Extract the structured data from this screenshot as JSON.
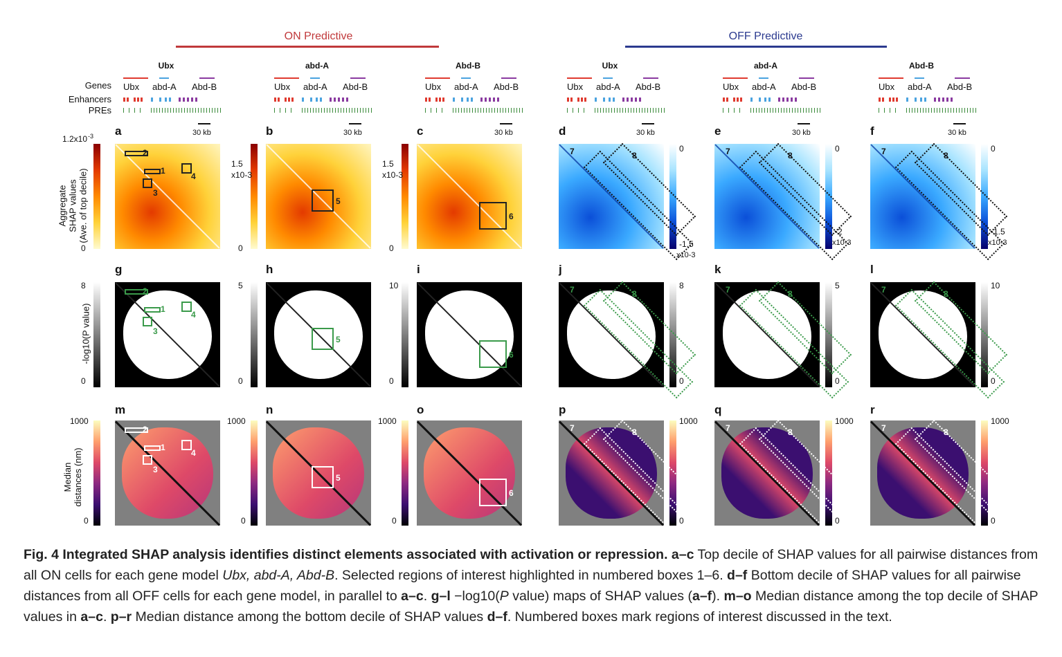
{
  "groups": [
    {
      "title": "ON Predictive",
      "color": "#c0393b"
    },
    {
      "title": "OFF Predictive",
      "color": "#2b3a8f"
    }
  ],
  "columns": [
    {
      "gene": "Ubx",
      "panel_top": "a",
      "panel_mid": "g",
      "panel_bot": "m",
      "type": "on",
      "shap_max": "1.2x10",
      "shap_exp": "-3",
      "shap_min": "0",
      "p_max": "8",
      "p_min": "0",
      "dist_max": "1000",
      "dist_min": "0"
    },
    {
      "gene": "abd-A",
      "panel_top": "b",
      "panel_mid": "h",
      "panel_bot": "n",
      "type": "on",
      "shap_max": "1.5",
      "shap_exp": "x10-3",
      "shap_min": "0",
      "p_max": "5",
      "p_min": "0",
      "dist_max": "1000",
      "dist_min": "0"
    },
    {
      "gene": "Abd-B",
      "panel_top": "c",
      "panel_mid": "i",
      "panel_bot": "o",
      "type": "on",
      "shap_max": "1.5",
      "shap_exp": "x10-3",
      "shap_min": "0",
      "p_max": "10",
      "p_min": "0",
      "dist_max": "1000",
      "dist_min": "0"
    },
    {
      "gene": "Ubx",
      "panel_top": "d",
      "panel_mid": "j",
      "panel_bot": "p",
      "type": "off",
      "shap_max": "0",
      "shap_min": "-1.5",
      "shap_exp": "x10-3",
      "p_max": "8",
      "p_min": "0",
      "dist_max": "1000",
      "dist_min": "0"
    },
    {
      "gene": "abd-A",
      "panel_top": "e",
      "panel_mid": "k",
      "panel_bot": "q",
      "type": "off",
      "shap_max": "0",
      "shap_min": "-2",
      "shap_exp": "x10-3",
      "p_max": "5",
      "p_min": "0",
      "dist_max": "1000",
      "dist_min": "0"
    },
    {
      "gene": "Abd-B",
      "panel_top": "f",
      "panel_mid": "l",
      "panel_bot": "r",
      "type": "off",
      "shap_max": "0",
      "shap_min": "-1.5",
      "shap_exp": "x10-3",
      "p_max": "10",
      "p_min": "0",
      "dist_max": "1000",
      "dist_min": "0"
    }
  ],
  "tracks": {
    "genes": "Genes",
    "enhancers": "Enhancers",
    "pres": "PREs"
  },
  "gene_names": [
    "Ubx",
    "abd-A",
    "Abd-B"
  ],
  "scale": "30 kb",
  "y_labels": {
    "top": [
      "Aggregate",
      "SHAP values",
      "(Ave. of top decile)"
    ],
    "mid": "-log10(P value)",
    "bot": [
      "Median",
      "distances (nm)"
    ]
  },
  "roi_numbers": [
    "1",
    "2",
    "3",
    "4",
    "5",
    "6",
    "7",
    "8"
  ],
  "caption": {
    "title": "Fig. 4 Integrated SHAP analysis identifies distinct elements associated with activation or repression.",
    "part1_bold": "a–c",
    "part1": " Top decile of SHAP values for all pairwise distances from all ON cells for each gene model ",
    "part1_italic": "Ubx, abd-A, Abd-B",
    "part1b": ". Selected regions of interest highlighted in numbered boxes 1–6. ",
    "part2_bold": "d–f",
    "part2": " Bottom decile of SHAP values for all pairwise distances from all OFF cells for each gene model, in parallel to ",
    "part2_ref": "a–c",
    "part2b": ". ",
    "part3_bold": "g–l",
    "part3": " −log10(",
    "part3_italic": "P",
    "part3b": " value) maps of SHAP values (",
    "part3_ref": "a–f",
    "part3c": "). ",
    "part4_bold": "m–o",
    "part4": " Median distance among the top decile of SHAP values in ",
    "part4_ref": "a–c",
    "part4b": ". ",
    "part5_bold": "p–r",
    "part5": " Median distance among the bottom decile of SHAP values ",
    "part5_ref": "d–f",
    "part5b": ". Numbered boxes mark regions of interest discussed in the text."
  },
  "colors": {
    "on_gradient": [
      "#fffbd0",
      "#ffd23a",
      "#ff8a00",
      "#e33a00",
      "#8a0000"
    ],
    "off_gradient": [
      "#ffffff",
      "#a8e4ff",
      "#3aa9ff",
      "#0b4fd8",
      "#07006b"
    ],
    "magma": [
      "#fcfdbf",
      "#fe9f6d",
      "#de4968",
      "#8c2981",
      "#3b0f70",
      "#000004"
    ],
    "roi_green": "#3a9a4a"
  }
}
